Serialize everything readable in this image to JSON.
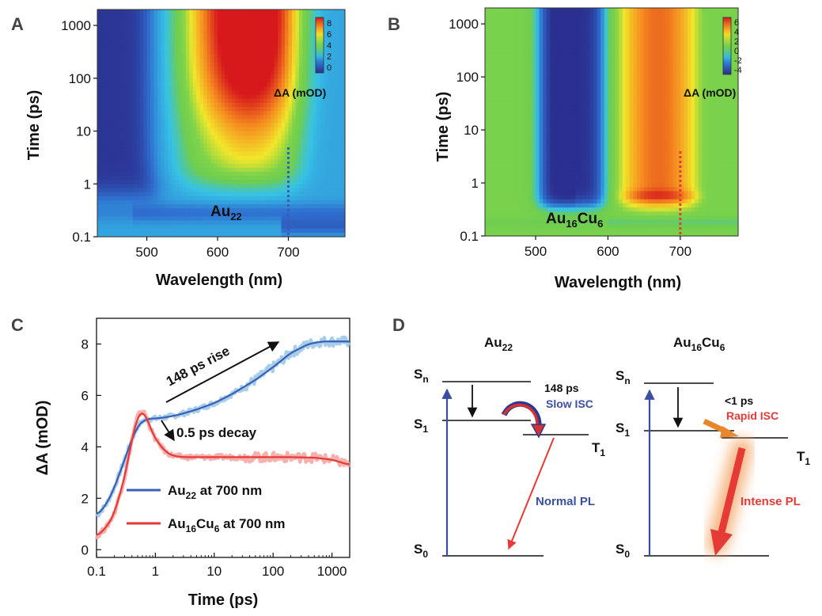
{
  "chart_data": [
    {
      "id": "A",
      "type": "heatmap",
      "panel_label": "A",
      "sample_label": {
        "main": "Au",
        "sub": "22"
      },
      "xlabel": "Wavelength (nm)",
      "ylabel": "Time (ps)",
      "xlim": [
        430,
        780
      ],
      "ylim": [
        0.1,
        2000
      ],
      "yscale": "log",
      "xticks": [
        500,
        600,
        700
      ],
      "yticks": [
        {
          "value": 0.1,
          "label": "0.1"
        },
        {
          "value": 1,
          "label": "1"
        },
        {
          "value": 10,
          "label": "10"
        },
        {
          "value": 100,
          "label": "100"
        },
        {
          "value": 1000,
          "label": "1000"
        }
      ],
      "colorbar": {
        "label": "ΔA (mOD)",
        "range": [
          -1,
          9
        ],
        "ticks": [
          "8",
          "6",
          "4",
          "2",
          "0"
        ],
        "tick_values": [
          8,
          6,
          4,
          2,
          0
        ]
      },
      "marker": {
        "wavelength": 700,
        "color": "#3b5bb5",
        "style": "dotted"
      },
      "features": [
        {
          "name": "ground-state bleach",
          "wavelength_range": [
            440,
            530
          ],
          "time_range": [
            0.6,
            2000
          ],
          "value": -1
        },
        {
          "name": "excited-state absorption rise",
          "wavelength_range": [
            560,
            720
          ],
          "time_range": [
            1,
            2000
          ],
          "value_early": 3,
          "value_late": 9
        }
      ]
    },
    {
      "id": "B",
      "type": "heatmap",
      "panel_label": "B",
      "sample_label": {
        "main": "Au",
        "sub1": "16",
        "mid": "Cu",
        "sub2": "6"
      },
      "xlabel": "Wavelength (nm)",
      "ylabel": "Time (ps)",
      "xlim": [
        430,
        780
      ],
      "ylim": [
        0.1,
        2000
      ],
      "yscale": "log",
      "xticks": [
        500,
        600,
        700
      ],
      "yticks": [
        {
          "value": 0.1,
          "label": "0.1"
        },
        {
          "value": 1,
          "label": "1"
        },
        {
          "value": 10,
          "label": "10"
        },
        {
          "value": 100,
          "label": "100"
        },
        {
          "value": 1000,
          "label": "1000"
        }
      ],
      "colorbar": {
        "label": "ΔA (mOD)",
        "range": [
          -5,
          7
        ],
        "ticks": [
          "6",
          "4",
          "2",
          "0",
          "-2",
          "-4"
        ],
        "tick_values": [
          6,
          4,
          2,
          0,
          -2,
          -4
        ]
      },
      "marker": {
        "wavelength": 700,
        "color": "#e53a36",
        "style": "dotted"
      },
      "features": [
        {
          "name": "bleach band",
          "wavelength_range": [
            505,
            595
          ],
          "time_range": [
            0.4,
            2000
          ],
          "value": -5
        },
        {
          "name": "absorption band",
          "wavelength_range": [
            625,
            720
          ],
          "time_range": [
            0.5,
            2000
          ],
          "value": 5
        }
      ]
    },
    {
      "id": "C",
      "type": "line",
      "panel_label": "C",
      "xlabel": "Time (ps)",
      "ylabel": "ΔA (mOD)",
      "xscale": "log",
      "xlim": [
        0.1,
        2000
      ],
      "ylim": [
        -0.3,
        9
      ],
      "xticks": [
        {
          "value": 0.1,
          "label": "0.1"
        },
        {
          "value": 1,
          "label": "1"
        },
        {
          "value": 10,
          "label": "10"
        },
        {
          "value": 100,
          "label": "100"
        },
        {
          "value": 1000,
          "label": "1000"
        }
      ],
      "yticks": [
        0,
        2,
        4,
        6,
        8
      ],
      "series": [
        {
          "name_main": "Au",
          "name_sub": "22",
          "name_tail": " at 700 nm",
          "color": "#3b5fb3",
          "raw_color": "#9cc8ea",
          "x": [
            0.1,
            0.15,
            0.2,
            0.3,
            0.4,
            0.5,
            0.6,
            0.8,
            1,
            1.5,
            2,
            3,
            5,
            10,
            20,
            50,
            100,
            200,
            400,
            700,
            1000,
            2000
          ],
          "y": [
            1.3,
            1.8,
            2.4,
            3.5,
            4.3,
            4.8,
            5.0,
            5.1,
            5.1,
            5.15,
            5.2,
            5.3,
            5.45,
            5.7,
            6.05,
            6.6,
            7.1,
            7.65,
            8.0,
            8.1,
            8.1,
            8.1
          ]
        },
        {
          "name_main": "Au",
          "name_sub": "16",
          "name_mid": "Cu",
          "name_sub2": "6",
          "name_tail": " at 700 nm",
          "color": "#e53a36",
          "raw_color": "#f5a7a5",
          "x": [
            0.1,
            0.15,
            0.2,
            0.3,
            0.4,
            0.5,
            0.6,
            0.7,
            0.8,
            1,
            1.5,
            2,
            3,
            5,
            10,
            20,
            50,
            100,
            200,
            500,
            1000,
            2000
          ],
          "y": [
            0.5,
            0.9,
            1.4,
            2.8,
            4.3,
            5.2,
            5.4,
            5.2,
            4.8,
            4.3,
            3.8,
            3.65,
            3.6,
            3.6,
            3.6,
            3.6,
            3.6,
            3.6,
            3.6,
            3.58,
            3.5,
            3.3
          ]
        }
      ],
      "annotations": [
        {
          "text": "148 ps rise",
          "target": "Au22 rise"
        },
        {
          "text": "0.5 ps decay",
          "target": "Au16Cu6 decay"
        }
      ],
      "legend": "bottom-left"
    }
  ],
  "panelA": {
    "letter": "A"
  },
  "panelB": {
    "letter": "B"
  },
  "panelC": {
    "letter": "C",
    "rise_label": "148 ps rise",
    "decay_label": "0.5 ps decay"
  },
  "panelD": {
    "letter": "D",
    "au22": {
      "title_main": "Au",
      "title_sub": "22",
      "sn_main": "S",
      "sn_sub": "n",
      "s1_main": "S",
      "s1_sub": "1",
      "s0_main": "S",
      "s0_sub": "0",
      "t1_main": "T",
      "t1_sub": "1",
      "isc_time": "148 ps",
      "isc_label": "Slow ISC",
      "pl_label": "Normal PL"
    },
    "au16cu6": {
      "title_main": "Au",
      "title_sub1": "16",
      "title_mid": "Cu",
      "title_sub2": "6",
      "sn_main": "S",
      "sn_sub": "n",
      "s1_main": "S",
      "s1_sub": "1",
      "s0_main": "S",
      "s0_sub": "0",
      "t1_main": "T",
      "t1_sub": "1",
      "isc_time": "<1 ps",
      "isc_label": "Rapid ISC",
      "pl_label": "Intense PL"
    },
    "colors": {
      "blue": "#3b4fa0",
      "red": "#e53a36",
      "orange": "#e8862a"
    }
  }
}
